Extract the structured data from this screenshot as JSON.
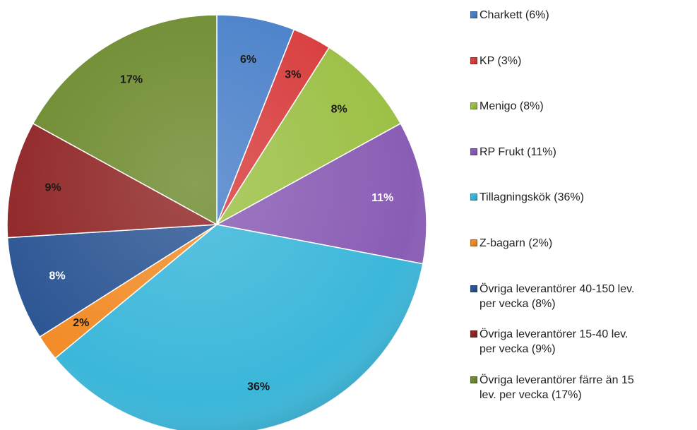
{
  "chart_data": {
    "type": "pie",
    "categories": [
      "Charkett (6%)",
      "KP (3%)",
      "Menigo (8%)",
      "RP Frukt (11%)",
      "Tillagningskök (36%)",
      "Z-bagarn (2%)",
      "Övriga leverantörer 40-150 lev. per vecka (8%)",
      "Övriga leverantörer 15-40 lev. per vecka (9%)",
      "Övriga leverantörer färre än 15 lev. per vecka (17%)"
    ],
    "values": [
      6,
      3,
      8,
      11,
      36,
      2,
      8,
      9,
      17
    ],
    "value_labels": [
      "6%",
      "3%",
      "8%",
      "11%",
      "36%",
      "2%",
      "8%",
      "9%",
      "17%"
    ],
    "colors": [
      "#4a80c9",
      "#d83c3c",
      "#9cc045",
      "#8a5db5",
      "#3bb7da",
      "#f28c28",
      "#2c5694",
      "#902626",
      "#6e8b2f"
    ],
    "label_colors": [
      "#1a1a1a",
      "#1a1a1a",
      "#1a1a1a",
      "#ffffff",
      "#1a1a1a",
      "#1a1a1a",
      "#ffffff",
      "#1a1a1a",
      "#1a1a1a"
    ],
    "legend": "right"
  }
}
